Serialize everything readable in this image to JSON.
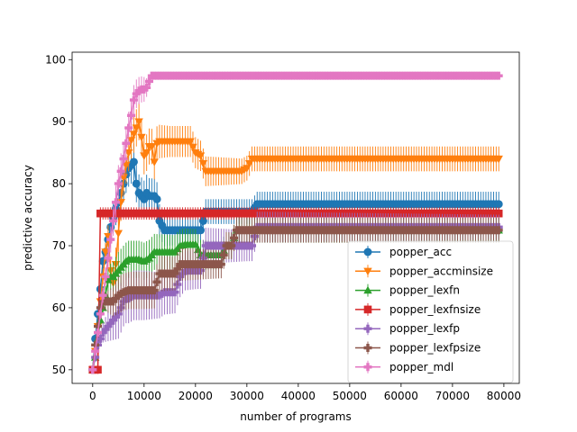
{
  "chart_data": {
    "type": "line",
    "xlabel": "number of programs",
    "ylabel": "predictive accuracy",
    "xlim": [
      -4000,
      83000
    ],
    "ylim": [
      47.8,
      101.2
    ],
    "xticks": [
      0,
      10000,
      20000,
      30000,
      40000,
      50000,
      60000,
      70000,
      80000
    ],
    "yticks": [
      50,
      60,
      70,
      80,
      90,
      100
    ],
    "grid": false,
    "legend_position": "lower-right",
    "series": [
      {
        "name": "popper_acc",
        "color": "#1f77b4",
        "marker": "circle",
        "points": [
          [
            0,
            50
          ],
          [
            500,
            55
          ],
          [
            1000,
            59
          ],
          [
            1500,
            63
          ],
          [
            2000,
            67.5
          ],
          [
            2500,
            69
          ],
          [
            3000,
            71
          ],
          [
            3500,
            73
          ],
          [
            4000,
            74.5
          ],
          [
            4500,
            76
          ],
          [
            5000,
            77
          ],
          [
            5500,
            78.5
          ],
          [
            6000,
            80
          ],
          [
            6500,
            81.5
          ],
          [
            7000,
            82.5
          ],
          [
            7500,
            83
          ],
          [
            8000,
            83.5
          ],
          [
            8500,
            80
          ],
          [
            9000,
            78.5
          ],
          [
            9500,
            78
          ],
          [
            10000,
            77.5
          ],
          [
            10500,
            78.5
          ],
          [
            11000,
            78
          ],
          [
            11500,
            78
          ],
          [
            12000,
            78
          ],
          [
            12500,
            77.5
          ],
          [
            13000,
            74
          ],
          [
            14000,
            72.5
          ],
          [
            15000,
            72.5
          ],
          [
            16000,
            72.5
          ],
          [
            17000,
            72.5
          ],
          [
            18000,
            72.5
          ],
          [
            19000,
            72.5
          ],
          [
            20000,
            72.5
          ],
          [
            21000,
            72.5
          ],
          [
            22000,
            75.5
          ],
          [
            23000,
            75.5
          ],
          [
            24000,
            75.5
          ],
          [
            25000,
            75.5
          ],
          [
            26000,
            75.5
          ],
          [
            27000,
            75.5
          ],
          [
            28000,
            75.5
          ],
          [
            29000,
            75.5
          ],
          [
            30000,
            75.5
          ],
          [
            31000,
            75.5
          ],
          [
            32000,
            76.7
          ],
          [
            79000,
            76.7
          ]
        ],
        "error": [
          [
            0,
            0
          ],
          [
            5000,
            3
          ],
          [
            10000,
            3
          ],
          [
            20000,
            2
          ],
          [
            30000,
            2
          ],
          [
            32000,
            2
          ],
          [
            79000,
            2
          ]
        ]
      },
      {
        "name": "popper_accminsize",
        "color": "#ff7f0e",
        "marker": "triangle-down",
        "points": [
          [
            0,
            50
          ],
          [
            500,
            53
          ],
          [
            1000,
            57
          ],
          [
            1500,
            61
          ],
          [
            2000,
            65
          ],
          [
            2500,
            69
          ],
          [
            3000,
            71.5
          ],
          [
            3500,
            66
          ],
          [
            4000,
            64
          ],
          [
            4500,
            67
          ],
          [
            5000,
            72
          ],
          [
            5500,
            77
          ],
          [
            6000,
            81
          ],
          [
            6500,
            83
          ],
          [
            7000,
            85
          ],
          [
            7500,
            87
          ],
          [
            8000,
            88
          ],
          [
            8500,
            89
          ],
          [
            9000,
            90
          ],
          [
            9500,
            87.5
          ],
          [
            10000,
            84.5
          ],
          [
            10500,
            85
          ],
          [
            11000,
            86
          ],
          [
            11500,
            86
          ],
          [
            12000,
            83.5
          ],
          [
            12500,
            86.5
          ],
          [
            13000,
            86.8
          ],
          [
            19000,
            86.8
          ],
          [
            20000,
            85
          ],
          [
            21000,
            84.5
          ],
          [
            22000,
            82
          ],
          [
            29000,
            82
          ],
          [
            30000,
            82.5
          ],
          [
            31000,
            84
          ],
          [
            79000,
            84
          ]
        ],
        "error": [
          [
            0,
            0
          ],
          [
            5000,
            3
          ],
          [
            10000,
            3
          ],
          [
            15000,
            2.5
          ],
          [
            20000,
            2.5
          ],
          [
            30000,
            2
          ],
          [
            79000,
            2
          ]
        ]
      },
      {
        "name": "popper_lexfn",
        "color": "#2ca02c",
        "marker": "triangle-up",
        "points": [
          [
            0,
            50
          ],
          [
            500,
            52
          ],
          [
            1000,
            55
          ],
          [
            1500,
            58
          ],
          [
            2000,
            60
          ],
          [
            2500,
            62
          ],
          [
            3000,
            64.5
          ],
          [
            3500,
            65
          ],
          [
            4000,
            65
          ],
          [
            4500,
            65.5
          ],
          [
            5000,
            66
          ],
          [
            5500,
            66.5
          ],
          [
            6000,
            67
          ],
          [
            6500,
            67.5
          ],
          [
            7000,
            67.8
          ],
          [
            8000,
            67.8
          ],
          [
            9000,
            67.8
          ],
          [
            10000,
            67.5
          ],
          [
            11000,
            68
          ],
          [
            12000,
            69
          ],
          [
            13000,
            69
          ],
          [
            14000,
            69
          ],
          [
            15000,
            69
          ],
          [
            16000,
            69
          ],
          [
            17000,
            70
          ],
          [
            18000,
            70.2
          ],
          [
            20000,
            70.2
          ],
          [
            21000,
            68.5
          ],
          [
            22000,
            68.5
          ],
          [
            25000,
            68.5
          ],
          [
            26000,
            70
          ],
          [
            27000,
            70
          ],
          [
            28000,
            72.5
          ],
          [
            79000,
            72.5
          ]
        ],
        "error": [
          [
            0,
            0
          ],
          [
            5000,
            3
          ],
          [
            10000,
            3
          ],
          [
            20000,
            2.5
          ],
          [
            30000,
            2
          ],
          [
            79000,
            2
          ]
        ]
      },
      {
        "name": "popper_lexfnsize",
        "color": "#d62728",
        "marker": "square",
        "points": [
          [
            0,
            50
          ],
          [
            1000,
            50
          ],
          [
            1500,
            75.2
          ],
          [
            79000,
            75.2
          ]
        ],
        "error": [
          [
            0,
            0
          ],
          [
            1500,
            1
          ],
          [
            79000,
            1
          ]
        ]
      },
      {
        "name": "popper_lexfp",
        "color": "#9467bd",
        "marker": "plus-filled",
        "points": [
          [
            0,
            50
          ],
          [
            500,
            52
          ],
          [
            1000,
            54
          ],
          [
            1500,
            55
          ],
          [
            2000,
            56
          ],
          [
            2500,
            56.5
          ],
          [
            3000,
            57
          ],
          [
            3500,
            57.5
          ],
          [
            4000,
            58
          ],
          [
            4500,
            58.5
          ],
          [
            5000,
            59
          ],
          [
            5500,
            60
          ],
          [
            6000,
            61
          ],
          [
            6500,
            61.5
          ],
          [
            7000,
            61.5
          ],
          [
            8000,
            62
          ],
          [
            9000,
            62
          ],
          [
            10000,
            62
          ],
          [
            11000,
            62
          ],
          [
            12000,
            62
          ],
          [
            13000,
            62
          ],
          [
            14000,
            62.5
          ],
          [
            15000,
            62.5
          ],
          [
            16000,
            62.5
          ],
          [
            17000,
            65
          ],
          [
            18000,
            66
          ],
          [
            19000,
            66
          ],
          [
            20000,
            66
          ],
          [
            21000,
            66
          ],
          [
            22000,
            70
          ],
          [
            23000,
            70
          ],
          [
            24000,
            70
          ],
          [
            25000,
            70
          ],
          [
            26000,
            70
          ],
          [
            27000,
            70
          ],
          [
            28000,
            70
          ],
          [
            29000,
            70
          ],
          [
            30000,
            70
          ],
          [
            31000,
            70
          ],
          [
            32000,
            73
          ],
          [
            79000,
            73
          ]
        ],
        "error": [
          [
            0,
            0
          ],
          [
            5000,
            4
          ],
          [
            10000,
            4
          ],
          [
            15000,
            3.5
          ],
          [
            20000,
            3
          ],
          [
            30000,
            2.5
          ],
          [
            79000,
            2
          ]
        ]
      },
      {
        "name": "popper_lexfpsize",
        "color": "#8c564b",
        "marker": "plus-filled",
        "points": [
          [
            0,
            50
          ],
          [
            500,
            54
          ],
          [
            1000,
            57
          ],
          [
            1500,
            60
          ],
          [
            2000,
            61
          ],
          [
            2500,
            61
          ],
          [
            3000,
            61
          ],
          [
            3500,
            61
          ],
          [
            4000,
            61
          ],
          [
            4500,
            61.5
          ],
          [
            5000,
            62
          ],
          [
            6000,
            62.5
          ],
          [
            7000,
            62.8
          ],
          [
            8000,
            62.8
          ],
          [
            12000,
            62.8
          ],
          [
            13000,
            65.5
          ],
          [
            16000,
            65.5
          ],
          [
            17000,
            67
          ],
          [
            25000,
            67
          ],
          [
            26000,
            70
          ],
          [
            27000,
            70
          ],
          [
            28000,
            72.5
          ],
          [
            79000,
            72.5
          ]
        ],
        "error": [
          [
            0,
            0
          ],
          [
            5000,
            3
          ],
          [
            10000,
            3
          ],
          [
            20000,
            2.5
          ],
          [
            30000,
            2
          ],
          [
            79000,
            2
          ]
        ]
      },
      {
        "name": "popper_mdl",
        "color": "#e377c2",
        "marker": "plus-filled",
        "points": [
          [
            0,
            50
          ],
          [
            500,
            53
          ],
          [
            1000,
            56
          ],
          [
            1500,
            59
          ],
          [
            2000,
            62
          ],
          [
            2500,
            65
          ],
          [
            3000,
            68
          ],
          [
            3500,
            71
          ],
          [
            4000,
            74
          ],
          [
            4500,
            77
          ],
          [
            5000,
            80
          ],
          [
            5500,
            82
          ],
          [
            6000,
            84
          ],
          [
            6500,
            86.5
          ],
          [
            7000,
            89
          ],
          [
            7500,
            91
          ],
          [
            8000,
            93.5
          ],
          [
            8500,
            94.5
          ],
          [
            9000,
            95
          ],
          [
            9500,
            95.2
          ],
          [
            10000,
            95.2
          ],
          [
            10500,
            95.5
          ],
          [
            11000,
            96.5
          ],
          [
            11500,
            97.4
          ],
          [
            79000,
            97.4
          ]
        ],
        "error": [
          [
            0,
            0
          ],
          [
            5000,
            3
          ],
          [
            10000,
            2
          ],
          [
            11500,
            0.5
          ],
          [
            79000,
            0.5
          ]
        ]
      }
    ]
  }
}
